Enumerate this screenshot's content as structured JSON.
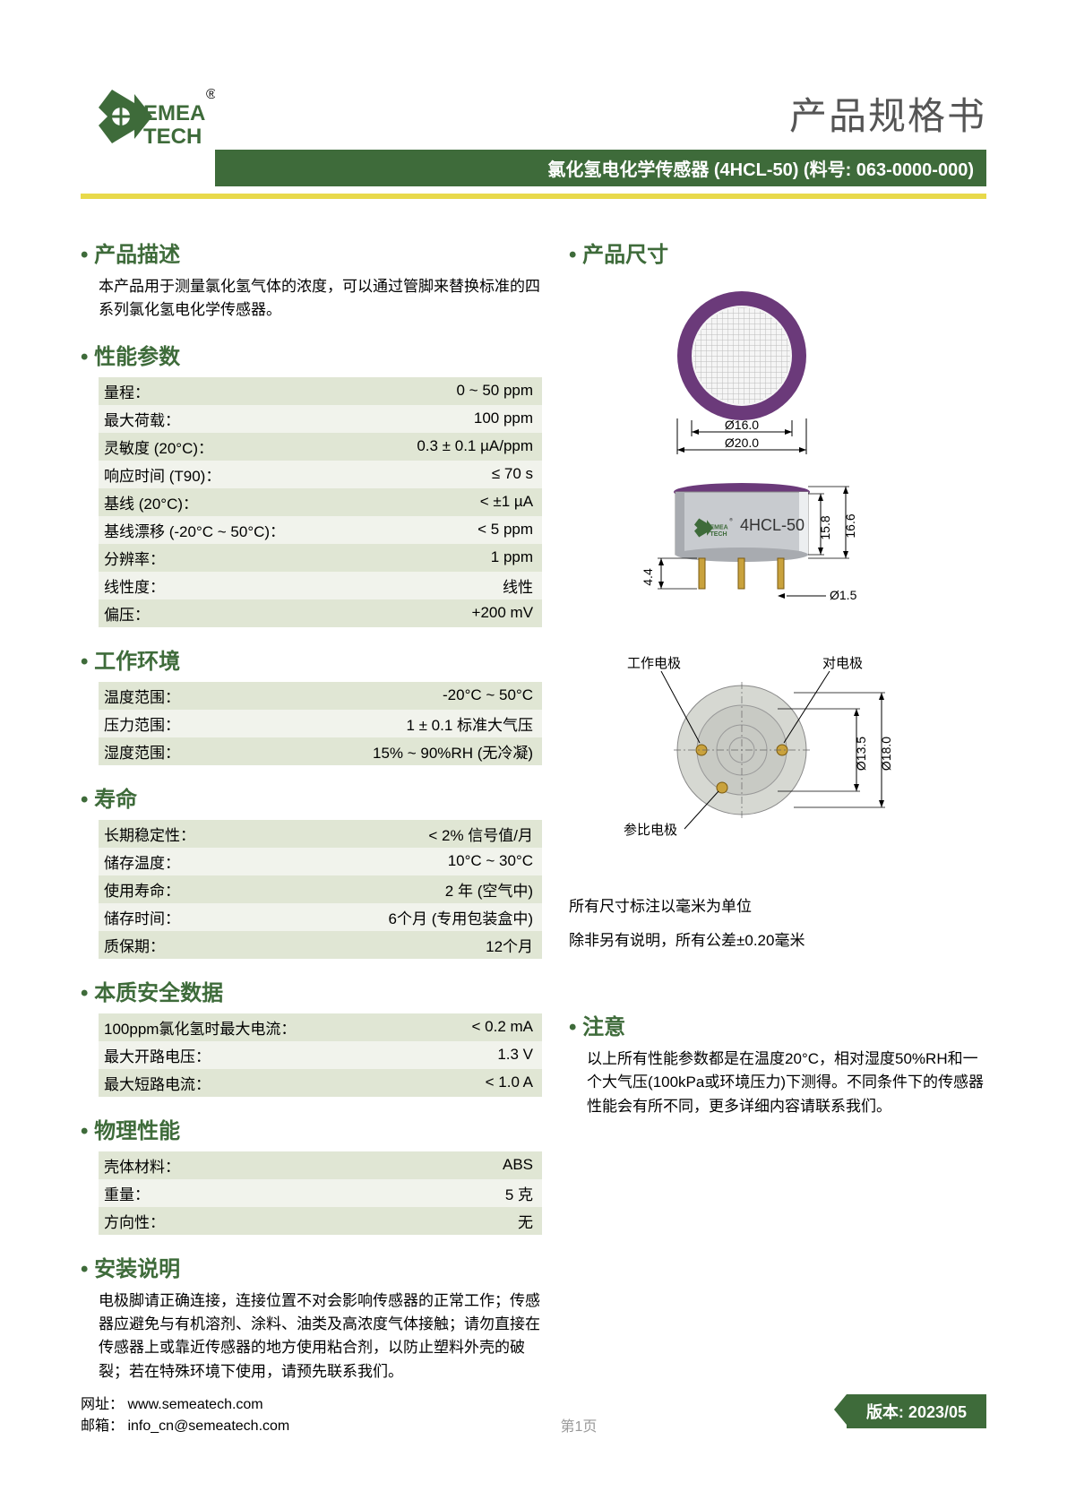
{
  "header": {
    "brand_top": "EMEA",
    "brand_bottom": "TECH",
    "reg_mark": "®",
    "main_title": "产品规格书",
    "sub_banner": "氯化氢电化学传感器 (4HCL-50) (料号: 063-0000-000)"
  },
  "sections": {
    "desc_title": "产品描述",
    "desc_text": "本产品用于测量氯化氢气体的浓度，可以通过管脚来替换标准的四系列氯化氢电化学传感器。",
    "perf_title": "性能参数",
    "perf_rows": [
      [
        "量程：",
        "0 ~ 50 ppm"
      ],
      [
        "最大荷载：",
        "100 ppm"
      ],
      [
        "灵敏度 (20°C)：",
        "0.3 ± 0.1 µA/ppm"
      ],
      [
        "响应时间 (T90)：",
        "≤ 70 s"
      ],
      [
        "基线 (20°C)：",
        "< ±1 µA"
      ],
      [
        "基线漂移 (-20°C ~ 50°C)：",
        "< 5 ppm"
      ],
      [
        "分辨率：",
        "1 ppm"
      ],
      [
        "线性度：",
        "线性"
      ],
      [
        "偏压：",
        "+200 mV"
      ]
    ],
    "env_title": "工作环境",
    "env_rows": [
      [
        "温度范围：",
        "-20°C ~ 50°C"
      ],
      [
        "压力范围：",
        "1 ± 0.1 标准大气压"
      ],
      [
        "湿度范围：",
        "15% ~ 90%RH (无冷凝)"
      ]
    ],
    "life_title": "寿命",
    "life_rows": [
      [
        "长期稳定性：",
        "< 2% 信号值/月"
      ],
      [
        "储存温度：",
        "10°C ~ 30°C"
      ],
      [
        "使用寿命：",
        "2 年 (空气中)"
      ],
      [
        "储存时间：",
        "6个月 (专用包装盒中)"
      ],
      [
        "质保期：",
        "12个月"
      ]
    ],
    "safety_title": "本质安全数据",
    "safety_rows": [
      [
        "100ppm氯化氢时最大电流：",
        "< 0.2 mA"
      ],
      [
        "最大开路电压：",
        "1.3 V"
      ],
      [
        "最大短路电流：",
        "< 1.0 A"
      ]
    ],
    "phys_title": "物理性能",
    "phys_rows": [
      [
        "壳体材料：",
        "ABS"
      ],
      [
        "重量：",
        "5 克"
      ],
      [
        "方向性：",
        "无"
      ]
    ],
    "install_title": "安装说明",
    "install_text": "电极脚请正确连接，连接位置不对会影响传感器的正常工作；传感器应避免与有机溶剂、涂料、油类及高浓度气体接触；请勿直接在传感器上或靠近传感器的地方使用粘合剂，以防止塑料外壳的破裂；若在特殊环境下使用，请预先联系我们。",
    "dim_title": "产品尺寸",
    "dim_note1": "所有尺寸标注以毫米为单位",
    "dim_note2": "除非另有说明，所有公差±0.20毫米",
    "notice_title": "注意",
    "notice_text": "以上所有性能参数都是在温度20°C，相对湿度50%RH和一个大气压(100kPa或环境压力)下测得。不同条件下的传感器性能会有所不同，更多详细内容请联系我们。"
  },
  "diagram": {
    "top_inner_dia": "Ø16.0",
    "top_outer_dia": "Ø20.0",
    "model_label": "4HCL-50",
    "body_h_inner": "15.8",
    "body_h_outer": "16.6",
    "pin_len": "4.4",
    "pin_dia": "Ø1.5",
    "bottom_labels": {
      "working": "工作电极",
      "counter": "对电极",
      "ref": "参比电极"
    },
    "bottom_pcd": "Ø13.5",
    "bottom_od": "Ø18.0"
  },
  "colors": {
    "brand_green": "#3e6b3a",
    "accent_yellow": "#e8d94a",
    "row_odd": "#e0e6d4",
    "row_even": "#f1f3ec",
    "sensor_purple": "#6b3a7a",
    "sensor_body": "#c8cbcf",
    "sensor_body_dark": "#a8abb0",
    "pin_gold": "#c9a23d"
  },
  "footer": {
    "url_label": "网址：",
    "url": "www.semeatech.com",
    "email_label": "邮箱：",
    "email": "info_cn@semeatech.com",
    "page": "第1页",
    "version": "版本: 2023/05"
  }
}
